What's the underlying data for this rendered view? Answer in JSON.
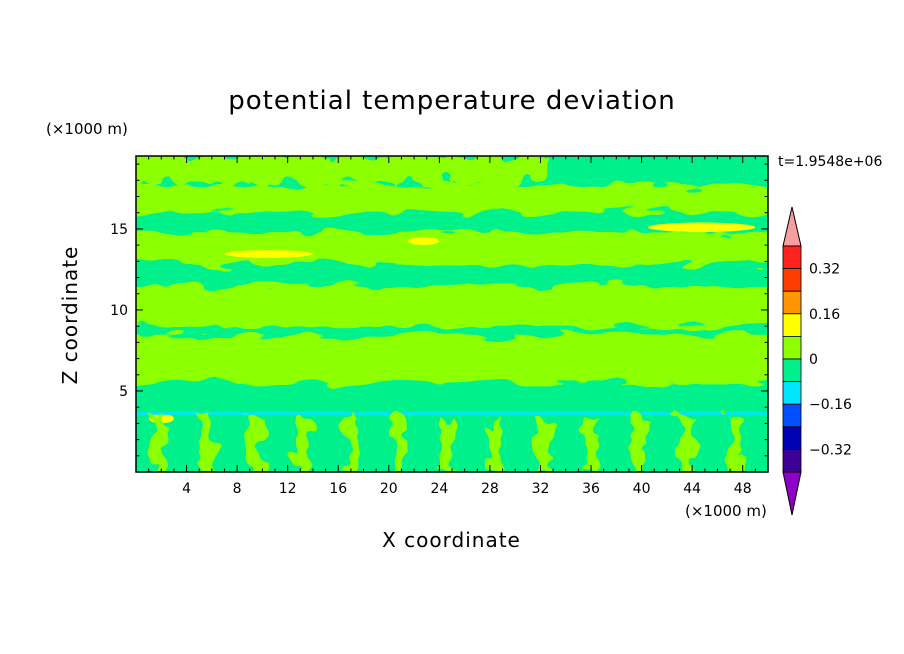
{
  "chart_data": {
    "type": "heatmap",
    "title": "potential temperature deviation",
    "xlabel": "X coordinate",
    "ylabel": "Z coordinate",
    "x_unit": "(×1000 m)",
    "y_unit": "(×1000 m)",
    "time_label": "t=1.9548e+06",
    "xlim": [
      0,
      50
    ],
    "ylim": [
      0,
      19.5
    ],
    "x_ticks": [
      4,
      8,
      12,
      16,
      20,
      24,
      28,
      32,
      36,
      40,
      44,
      48
    ],
    "y_ticks": [
      5,
      10,
      15
    ],
    "colorbar": {
      "labels": [
        "0.32",
        "0.16",
        "0",
        "−0.16",
        "−0.32"
      ],
      "label_values": [
        0.32,
        0.16,
        0,
        -0.16,
        -0.32
      ],
      "levels": [
        -0.4,
        -0.32,
        -0.24,
        -0.16,
        -0.08,
        0,
        0.08,
        0.16,
        0.24,
        0.32,
        0.4
      ],
      "colors": [
        "#3c0096",
        "#0000b4",
        "#0050ff",
        "#00e6ff",
        "#00f08c",
        "#8cff00",
        "#ffff00",
        "#ff9600",
        "#ff3c00",
        "#ff2020"
      ],
      "under_color": "#8c00c8",
      "over_color": "#f5a0a0"
    },
    "background_value_color": "#00f08c",
    "features": [
      {
        "kind": "band",
        "value": 0.04,
        "z": [
          16.0,
          17.7
        ]
      },
      {
        "kind": "band",
        "value": 0.04,
        "z": [
          12.8,
          14.8
        ]
      },
      {
        "kind": "band",
        "value": 0.04,
        "z": [
          9.0,
          11.5
        ]
      },
      {
        "kind": "band",
        "value": 0.04,
        "z": [
          5.5,
          8.5
        ]
      },
      {
        "kind": "patch",
        "value": 0.04,
        "x": [
          0,
          31
        ],
        "z": [
          17.8,
          19.5
        ]
      },
      {
        "kind": "maximum",
        "value": 0.12,
        "x": [
          7,
          14
        ],
        "z": [
          13.3,
          13.6
        ]
      },
      {
        "kind": "maximum",
        "value": 0.12,
        "x": [
          21.5,
          24
        ],
        "z": [
          14.1,
          14.4
        ]
      },
      {
        "kind": "maximum",
        "value": 0.12,
        "x": [
          40.5,
          49
        ],
        "z": [
          14.9,
          15.3
        ]
      },
      {
        "kind": "maximum",
        "value": 0.12,
        "x": [
          1,
          3
        ],
        "z": [
          3.1,
          3.5
        ]
      },
      {
        "kind": "layer",
        "value": -0.12,
        "x": [
          0,
          50
        ],
        "z": [
          3.5,
          3.7
        ]
      }
    ]
  }
}
